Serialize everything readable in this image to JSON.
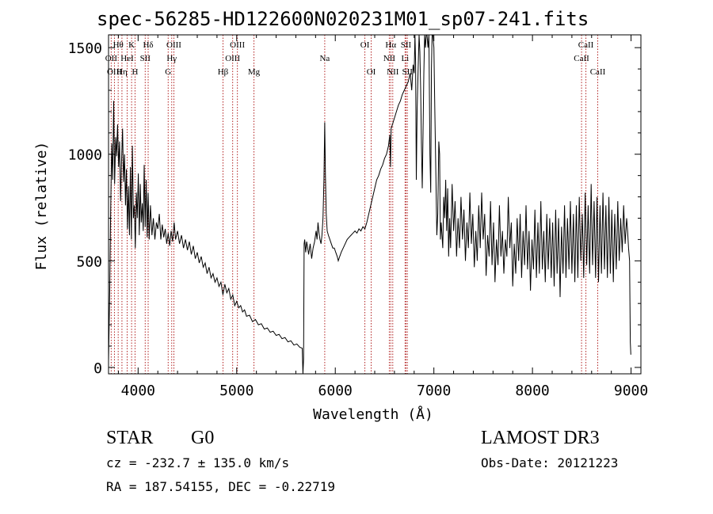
{
  "header": {
    "title": "spec-56285-HD122600N020231M01_sp07-241.fits"
  },
  "footer": {
    "class_label": "STAR",
    "subclass_label": "G0",
    "survey": "LAMOST DR3",
    "cz": "cz = -232.7 ± 135.0 km/s",
    "obs_date": "Obs-Date: 20121223",
    "radec": "RA = 187.54155, DEC =  -0.22719"
  },
  "chart_data": {
    "type": "line",
    "title": "spec-56285-HD122600N020231M01_sp07-241.fits",
    "xlabel": "Wavelength (Å)",
    "ylabel": "Flux (relative)",
    "xlim": [
      3700,
      9100
    ],
    "ylim": [
      -30,
      1560
    ],
    "x_ticks": [
      4000,
      5000,
      6000,
      7000,
      8000,
      9000
    ],
    "y_ticks": [
      0,
      500,
      1000,
      1500
    ],
    "line_color": "#000000",
    "marker_color": "#b22222",
    "lines": [
      {
        "label": "OII",
        "wavelength": 3727,
        "row": 1
      },
      {
        "label": "Hθ",
        "wavelength": 3798,
        "row": 0
      },
      {
        "label": "OIII",
        "wavelength": 3760,
        "row": 2
      },
      {
        "label": "Hη",
        "wavelength": 3836,
        "row": 2
      },
      {
        "label": "HeI",
        "wavelength": 3889,
        "row": 1
      },
      {
        "label": "K",
        "wavelength": 3934,
        "row": 0
      },
      {
        "label": "H",
        "wavelength": 3969,
        "row": 2
      },
      {
        "label": "SII",
        "wavelength": 4072,
        "row": 1
      },
      {
        "label": "Hδ",
        "wavelength": 4102,
        "row": 0
      },
      {
        "label": "G",
        "wavelength": 4305,
        "row": 2
      },
      {
        "label": "Hγ",
        "wavelength": 4341,
        "row": 1
      },
      {
        "label": "OIII",
        "wavelength": 4363,
        "row": 0
      },
      {
        "label": "Hβ",
        "wavelength": 4861,
        "row": 2
      },
      {
        "label": "OIII",
        "wavelength": 4959,
        "row": 1
      },
      {
        "label": "OIII",
        "wavelength": 5007,
        "row": 0
      },
      {
        "label": "Mg",
        "wavelength": 5175,
        "row": 2
      },
      {
        "label": "Na",
        "wavelength": 5893,
        "row": 1
      },
      {
        "label": "OI",
        "wavelength": 6300,
        "row": 0
      },
      {
        "label": "OI",
        "wavelength": 6364,
        "row": 2
      },
      {
        "label": "NII",
        "wavelength": 6548,
        "row": 1
      },
      {
        "label": "Hα",
        "wavelength": 6563,
        "row": 0
      },
      {
        "label": "NII",
        "wavelength": 6583,
        "row": 2
      },
      {
        "label": "SII",
        "wavelength": 6717,
        "row": 0
      },
      {
        "label": "Li",
        "wavelength": 6708,
        "row": 1
      },
      {
        "label": "SII",
        "wavelength": 6731,
        "row": 2
      },
      {
        "label": "CaII",
        "wavelength": 8498,
        "row": 1
      },
      {
        "label": "CaII",
        "wavelength": 8542,
        "row": 0
      },
      {
        "label": "CaII",
        "wavelength": 8662,
        "row": 2
      }
    ],
    "spectrum": [
      [
        3700,
        30
      ],
      [
        3712,
        360
      ],
      [
        3722,
        740
      ],
      [
        3732,
        1050
      ],
      [
        3742,
        880
      ],
      [
        3752,
        1250
      ],
      [
        3762,
        860
      ],
      [
        3772,
        1080
      ],
      [
        3782,
        990
      ],
      [
        3792,
        1140
      ],
      [
        3802,
        940
      ],
      [
        3812,
        1060
      ],
      [
        3822,
        780
      ],
      [
        3832,
        960
      ],
      [
        3842,
        1120
      ],
      [
        3852,
        870
      ],
      [
        3862,
        1000
      ],
      [
        3872,
        760
      ],
      [
        3882,
        930
      ],
      [
        3892,
        650
      ],
      [
        3902,
        850
      ],
      [
        3912,
        620
      ],
      [
        3922,
        940
      ],
      [
        3932,
        600
      ],
      [
        3942,
        1040
      ],
      [
        3952,
        700
      ],
      [
        3962,
        760
      ],
      [
        3972,
        560
      ],
      [
        3982,
        820
      ],
      [
        3992,
        700
      ],
      [
        4002,
        910
      ],
      [
        4012,
        620
      ],
      [
        4022,
        860
      ],
      [
        4032,
        680
      ],
      [
        4042,
        770
      ],
      [
        4052,
        640
      ],
      [
        4062,
        950
      ],
      [
        4072,
        660
      ],
      [
        4082,
        880
      ],
      [
        4092,
        610
      ],
      [
        4102,
        820
      ],
      [
        4112,
        600
      ],
      [
        4125,
        760
      ],
      [
        4140,
        620
      ],
      [
        4155,
        700
      ],
      [
        4170,
        600
      ],
      [
        4185,
        680
      ],
      [
        4200,
        650
      ],
      [
        4215,
        720
      ],
      [
        4230,
        600
      ],
      [
        4245,
        670
      ],
      [
        4260,
        610
      ],
      [
        4275,
        650
      ],
      [
        4290,
        580
      ],
      [
        4305,
        630
      ],
      [
        4320,
        570
      ],
      [
        4335,
        640
      ],
      [
        4350,
        590
      ],
      [
        4365,
        680
      ],
      [
        4380,
        600
      ],
      [
        4400,
        640
      ],
      [
        4420,
        580
      ],
      [
        4440,
        620
      ],
      [
        4460,
        560
      ],
      [
        4480,
        600
      ],
      [
        4500,
        550
      ],
      [
        4520,
        590
      ],
      [
        4540,
        530
      ],
      [
        4560,
        570
      ],
      [
        4580,
        510
      ],
      [
        4600,
        540
      ],
      [
        4620,
        490
      ],
      [
        4640,
        520
      ],
      [
        4660,
        470
      ],
      [
        4680,
        490
      ],
      [
        4700,
        440
      ],
      [
        4720,
        470
      ],
      [
        4740,
        420
      ],
      [
        4760,
        440
      ],
      [
        4780,
        400
      ],
      [
        4800,
        420
      ],
      [
        4820,
        380
      ],
      [
        4840,
        400
      ],
      [
        4860,
        340
      ],
      [
        4880,
        390
      ],
      [
        4900,
        350
      ],
      [
        4920,
        370
      ],
      [
        4940,
        320
      ],
      [
        4960,
        340
      ],
      [
        4980,
        290
      ],
      [
        5000,
        310
      ],
      [
        5020,
        280
      ],
      [
        5040,
        290
      ],
      [
        5060,
        260
      ],
      [
        5080,
        270
      ],
      [
        5100,
        240
      ],
      [
        5130,
        245
      ],
      [
        5160,
        215
      ],
      [
        5190,
        225
      ],
      [
        5220,
        200
      ],
      [
        5250,
        205
      ],
      [
        5280,
        180
      ],
      [
        5310,
        185
      ],
      [
        5340,
        165
      ],
      [
        5370,
        170
      ],
      [
        5400,
        150
      ],
      [
        5430,
        155
      ],
      [
        5460,
        135
      ],
      [
        5490,
        140
      ],
      [
        5520,
        120
      ],
      [
        5550,
        125
      ],
      [
        5580,
        105
      ],
      [
        5610,
        110
      ],
      [
        5640,
        95
      ],
      [
        5665,
        90
      ],
      [
        5672,
        -30
      ],
      [
        5678,
        40
      ],
      [
        5684,
        580
      ],
      [
        5690,
        600
      ],
      [
        5700,
        540
      ],
      [
        5710,
        590
      ],
      [
        5720,
        560
      ],
      [
        5730,
        530
      ],
      [
        5745,
        580
      ],
      [
        5760,
        510
      ],
      [
        5775,
        560
      ],
      [
        5790,
        590
      ],
      [
        5805,
        640
      ],
      [
        5815,
        600
      ],
      [
        5825,
        680
      ],
      [
        5835,
        630
      ],
      [
        5845,
        600
      ],
      [
        5855,
        580
      ],
      [
        5865,
        620
      ],
      [
        5875,
        700
      ],
      [
        5885,
        880
      ],
      [
        5893,
        1150
      ],
      [
        5900,
        900
      ],
      [
        5908,
        720
      ],
      [
        5918,
        640
      ],
      [
        5930,
        620
      ],
      [
        5945,
        600
      ],
      [
        5960,
        580
      ],
      [
        5975,
        560
      ],
      [
        5990,
        560
      ],
      [
        6005,
        540
      ],
      [
        6020,
        520
      ],
      [
        6030,
        500
      ],
      [
        6045,
        520
      ],
      [
        6060,
        540
      ],
      [
        6080,
        560
      ],
      [
        6100,
        580
      ],
      [
        6120,
        600
      ],
      [
        6140,
        610
      ],
      [
        6160,
        620
      ],
      [
        6180,
        630
      ],
      [
        6200,
        640
      ],
      [
        6220,
        630
      ],
      [
        6240,
        650
      ],
      [
        6260,
        640
      ],
      [
        6280,
        660
      ],
      [
        6300,
        650
      ],
      [
        6320,
        680
      ],
      [
        6340,
        720
      ],
      [
        6360,
        760
      ],
      [
        6380,
        800
      ],
      [
        6400,
        840
      ],
      [
        6420,
        880
      ],
      [
        6440,
        900
      ],
      [
        6460,
        930
      ],
      [
        6480,
        950
      ],
      [
        6500,
        980
      ],
      [
        6520,
        1000
      ],
      [
        6540,
        1040
      ],
      [
        6553,
        1090
      ],
      [
        6560,
        940
      ],
      [
        6566,
        1120
      ],
      [
        6580,
        1140
      ],
      [
        6600,
        1170
      ],
      [
        6620,
        1200
      ],
      [
        6640,
        1230
      ],
      [
        6660,
        1250
      ],
      [
        6680,
        1280
      ],
      [
        6700,
        1300
      ],
      [
        6720,
        1320
      ],
      [
        6740,
        1340
      ],
      [
        6760,
        1380
      ],
      [
        6775,
        1300
      ],
      [
        6790,
        1420
      ],
      [
        6800,
        1380
      ],
      [
        6808,
        1560
      ],
      [
        6815,
        1430
      ],
      [
        6822,
        880
      ],
      [
        6830,
        1200
      ],
      [
        6840,
        1400
      ],
      [
        6850,
        1560
      ],
      [
        6858,
        1480
      ],
      [
        6866,
        1300
      ],
      [
        6874,
        1040
      ],
      [
        6882,
        840
      ],
      [
        6890,
        1100
      ],
      [
        6898,
        1380
      ],
      [
        6906,
        1560
      ],
      [
        6914,
        1500
      ],
      [
        6922,
        1560
      ],
      [
        6930,
        1560
      ],
      [
        6940,
        1500
      ],
      [
        6950,
        1560
      ],
      [
        6960,
        1000
      ],
      [
        6968,
        820
      ],
      [
        6975,
        1400
      ],
      [
        6982,
        1560
      ],
      [
        6990,
        1560
      ],
      [
        7000,
        1500
      ],
      [
        7010,
        1200
      ],
      [
        7020,
        900
      ],
      [
        7030,
        620
      ],
      [
        7040,
        720
      ],
      [
        7050,
        1060
      ],
      [
        7058,
        1000
      ],
      [
        7066,
        600
      ],
      [
        7074,
        680
      ],
      [
        7082,
        620
      ],
      [
        7090,
        560
      ],
      [
        7100,
        800
      ],
      [
        7110,
        700
      ],
      [
        7120,
        880
      ],
      [
        7130,
        640
      ],
      [
        7140,
        840
      ],
      [
        7150,
        520
      ],
      [
        7160,
        700
      ],
      [
        7170,
        560
      ],
      [
        7185,
        860
      ],
      [
        7200,
        640
      ],
      [
        7215,
        780
      ],
      [
        7230,
        520
      ],
      [
        7245,
        700
      ],
      [
        7260,
        560
      ],
      [
        7275,
        800
      ],
      [
        7290,
        600
      ],
      [
        7305,
        740
      ],
      [
        7320,
        500
      ],
      [
        7335,
        680
      ],
      [
        7350,
        560
      ],
      [
        7365,
        820
      ],
      [
        7380,
        580
      ],
      [
        7395,
        720
      ],
      [
        7410,
        470
      ],
      [
        7425,
        640
      ],
      [
        7440,
        500
      ],
      [
        7455,
        760
      ],
      [
        7470,
        560
      ],
      [
        7485,
        820
      ],
      [
        7500,
        600
      ],
      [
        7515,
        720
      ],
      [
        7530,
        430
      ],
      [
        7545,
        620
      ],
      [
        7560,
        520
      ],
      [
        7575,
        780
      ],
      [
        7590,
        480
      ],
      [
        7605,
        680
      ],
      [
        7620,
        400
      ],
      [
        7635,
        600
      ],
      [
        7650,
        480
      ],
      [
        7665,
        760
      ],
      [
        7680,
        520
      ],
      [
        7695,
        640
      ],
      [
        7710,
        440
      ],
      [
        7725,
        600
      ],
      [
        7740,
        520
      ],
      [
        7755,
        800
      ],
      [
        7770,
        560
      ],
      [
        7785,
        680
      ],
      [
        7800,
        380
      ],
      [
        7815,
        580
      ],
      [
        7830,
        440
      ],
      [
        7845,
        700
      ],
      [
        7860,
        500
      ],
      [
        7875,
        720
      ],
      [
        7890,
        420
      ],
      [
        7905,
        640
      ],
      [
        7920,
        480
      ],
      [
        7935,
        760
      ],
      [
        7950,
        460
      ],
      [
        7965,
        640
      ],
      [
        7980,
        360
      ],
      [
        7995,
        600
      ],
      [
        8010,
        460
      ],
      [
        8025,
        740
      ],
      [
        8040,
        420
      ],
      [
        8055,
        680
      ],
      [
        8070,
        440
      ],
      [
        8085,
        780
      ],
      [
        8100,
        460
      ],
      [
        8115,
        640
      ],
      [
        8130,
        400
      ],
      [
        8145,
        720
      ],
      [
        8160,
        460
      ],
      [
        8175,
        700
      ],
      [
        8190,
        420
      ],
      [
        8205,
        680
      ],
      [
        8220,
        380
      ],
      [
        8235,
        740
      ],
      [
        8250,
        440
      ],
      [
        8265,
        700
      ],
      [
        8280,
        330
      ],
      [
        8295,
        660
      ],
      [
        8310,
        440
      ],
      [
        8325,
        760
      ],
      [
        8340,
        420
      ],
      [
        8355,
        700
      ],
      [
        8370,
        460
      ],
      [
        8385,
        780
      ],
      [
        8400,
        440
      ],
      [
        8415,
        720
      ],
      [
        8430,
        400
      ],
      [
        8445,
        760
      ],
      [
        8460,
        420
      ],
      [
        8475,
        800
      ],
      [
        8490,
        500
      ],
      [
        8505,
        720
      ],
      [
        8520,
        420
      ],
      [
        8535,
        820
      ],
      [
        8550,
        480
      ],
      [
        8565,
        760
      ],
      [
        8580,
        440
      ],
      [
        8595,
        860
      ],
      [
        8610,
        480
      ],
      [
        8625,
        780
      ],
      [
        8640,
        420
      ],
      [
        8655,
        800
      ],
      [
        8670,
        400
      ],
      [
        8685,
        760
      ],
      [
        8700,
        440
      ],
      [
        8715,
        820
      ],
      [
        8730,
        460
      ],
      [
        8745,
        760
      ],
      [
        8760,
        420
      ],
      [
        8775,
        800
      ],
      [
        8790,
        440
      ],
      [
        8805,
        740
      ],
      [
        8820,
        400
      ],
      [
        8835,
        720
      ],
      [
        8850,
        460
      ],
      [
        8865,
        780
      ],
      [
        8880,
        500
      ],
      [
        8895,
        700
      ],
      [
        8910,
        540
      ],
      [
        8925,
        760
      ],
      [
        8940,
        580
      ],
      [
        8955,
        700
      ],
      [
        8965,
        640
      ],
      [
        8975,
        560
      ],
      [
        8985,
        500
      ],
      [
        8992,
        120
      ],
      [
        8998,
        60
      ]
    ]
  }
}
